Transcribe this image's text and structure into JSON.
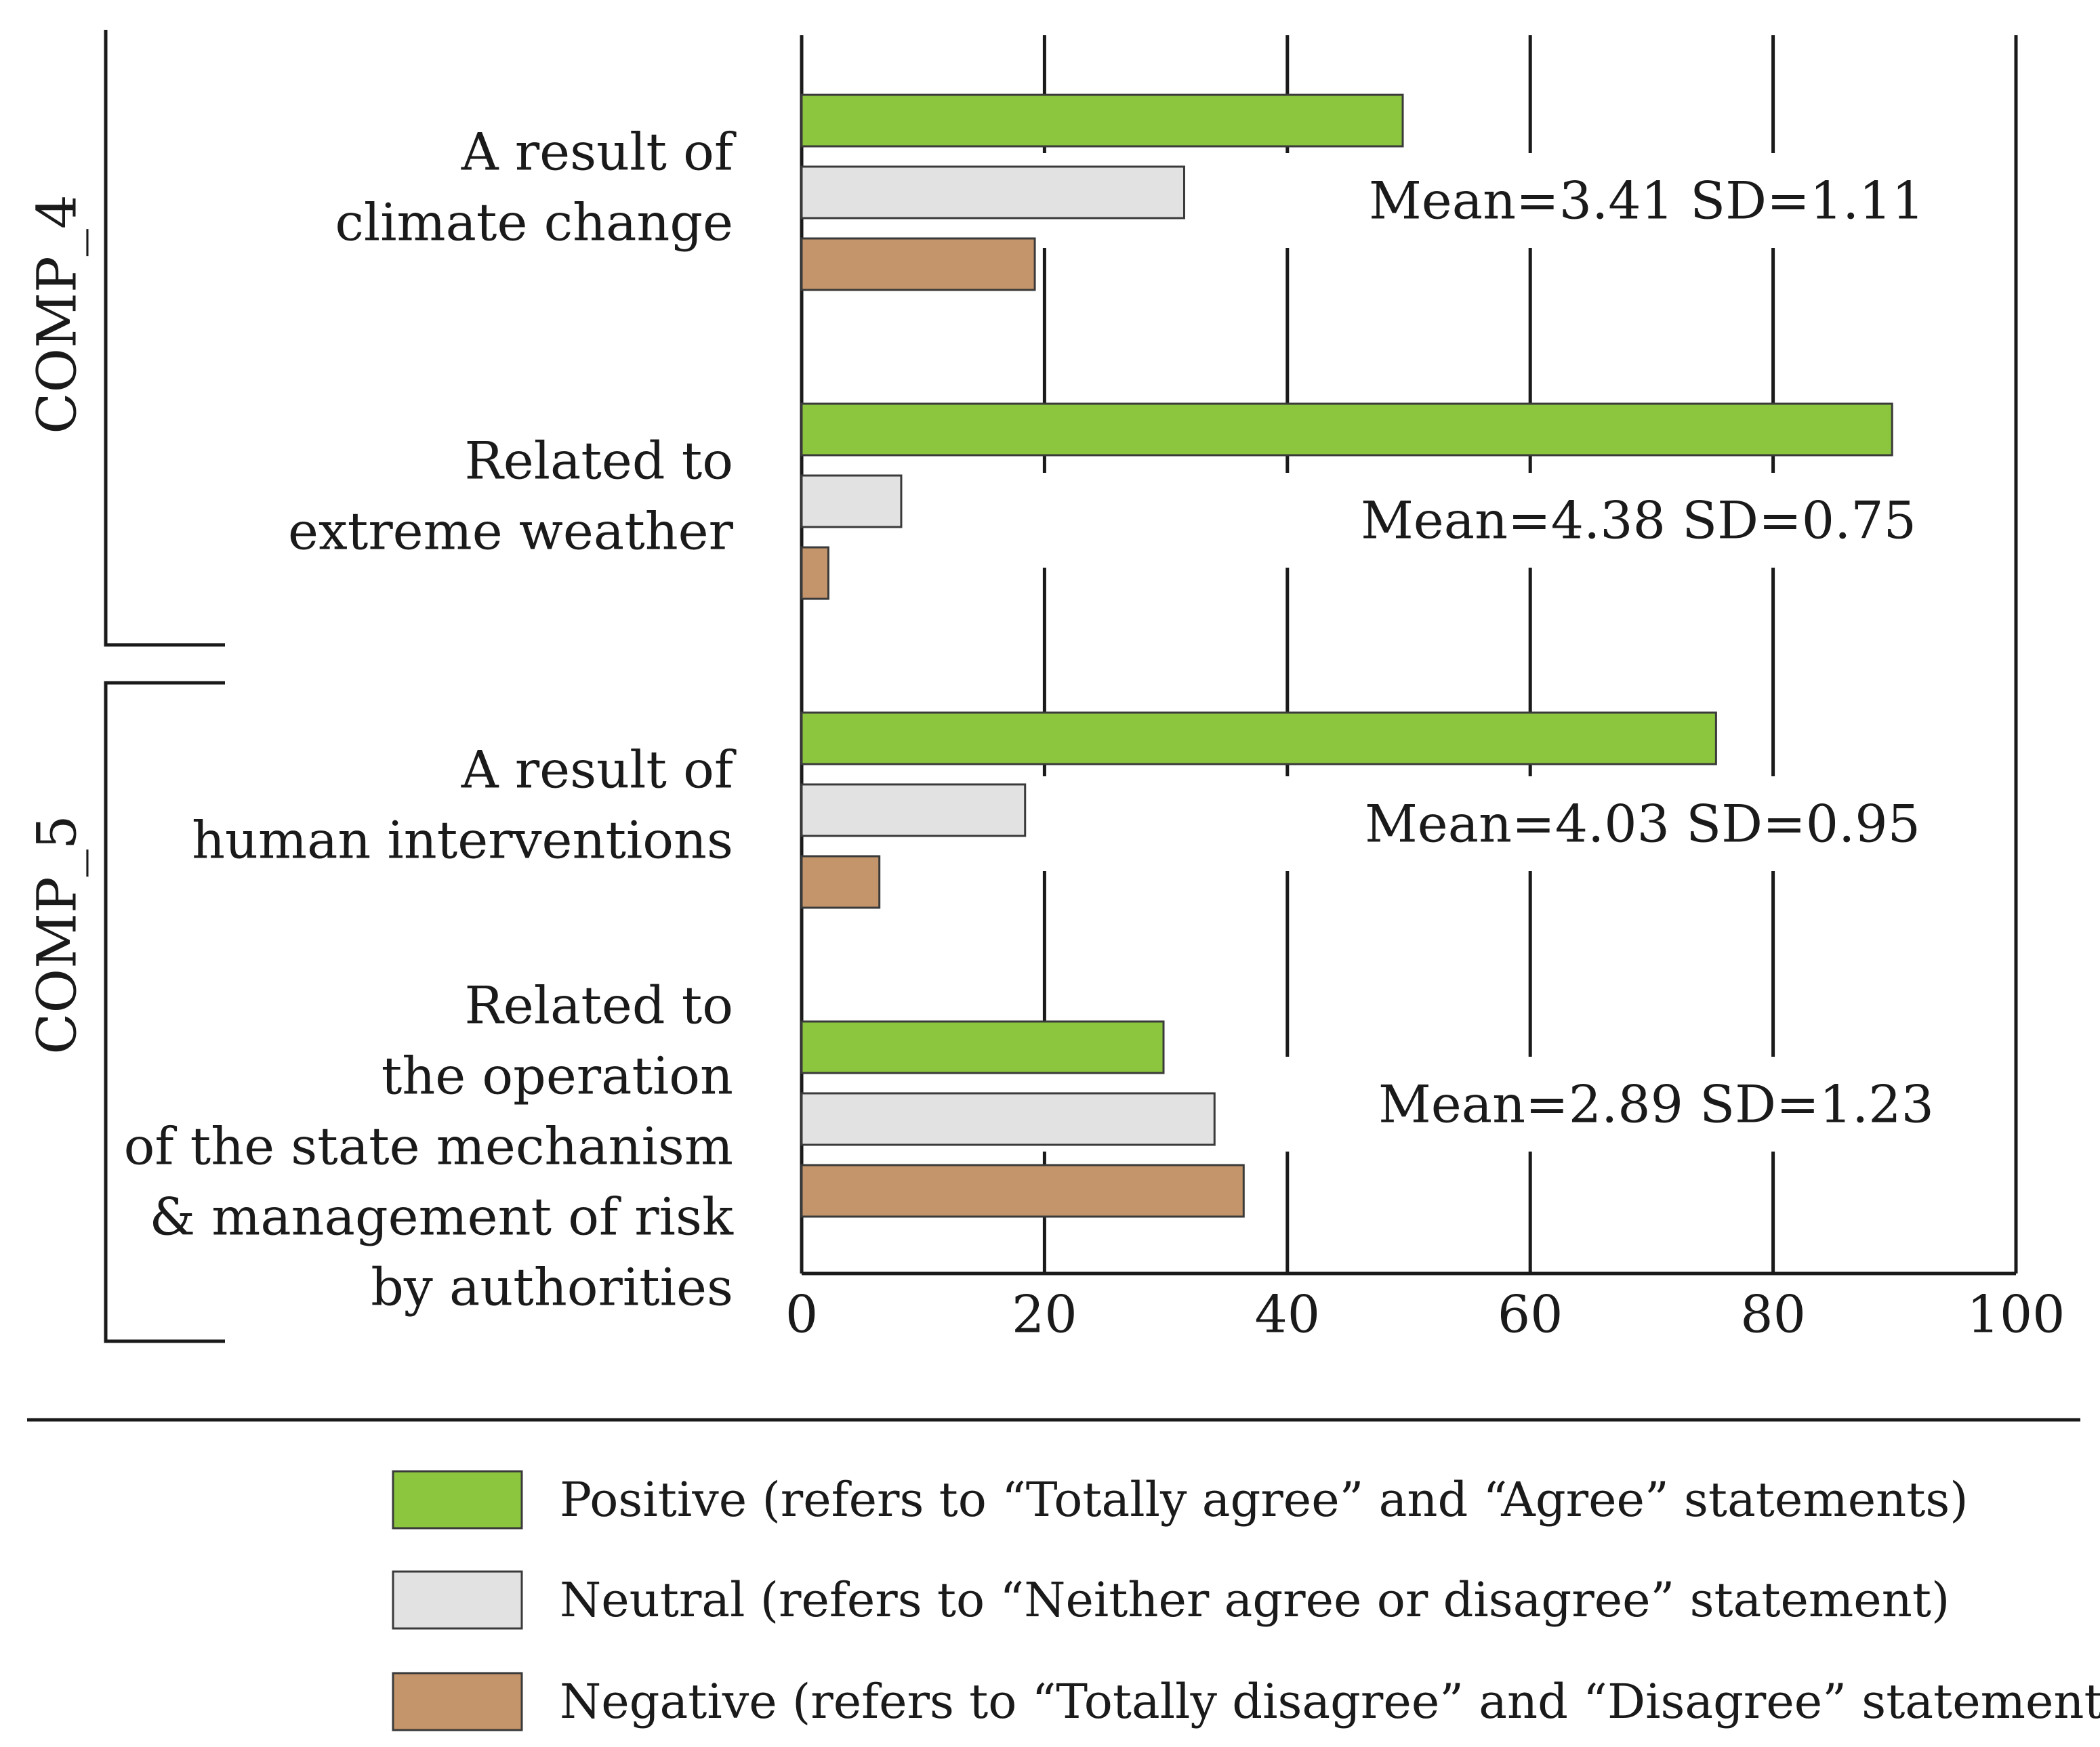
{
  "chart_data": {
    "type": "bar",
    "orientation": "horizontal",
    "xlim": [
      0,
      100
    ],
    "xticks": [
      0,
      20,
      40,
      60,
      80,
      100
    ],
    "grid": true,
    "legend_position": "bottom",
    "colors": {
      "Positive": "#8cc63f",
      "Neutral": "#e2e2e2",
      "Negative": "#c4956a"
    },
    "groups": [
      {
        "name": "COMP_4",
        "categories": [
          0,
          1
        ]
      },
      {
        "name": "COMP_5",
        "categories": [
          2,
          3
        ]
      }
    ],
    "categories": [
      {
        "label_lines": [
          "A result of",
          "climate change"
        ],
        "stats": "Mean=3.41  SD=1.11",
        "values": {
          "Positive": 49.5,
          "Neutral": 31.5,
          "Negative": 19.2
        }
      },
      {
        "label_lines": [
          "Related to",
          "extreme weather"
        ],
        "stats": "Mean=4.38  SD=0.75",
        "values": {
          "Positive": 89.8,
          "Neutral": 8.2,
          "Negative": 2.2
        }
      },
      {
        "label_lines": [
          "A result of",
          "human interventions"
        ],
        "stats": "Mean=4.03  SD=0.95",
        "values": {
          "Positive": 75.3,
          "Neutral": 18.4,
          "Negative": 6.4
        }
      },
      {
        "label_lines": [
          "Related to",
          "the operation",
          "of the state mechanism",
          "& management of risk",
          "by authorities"
        ],
        "stats": "Mean=2.89  SD=1.23",
        "values": {
          "Positive": 29.8,
          "Neutral": 34.0,
          "Negative": 36.4
        }
      }
    ],
    "series": [
      {
        "name": "Positive",
        "legend": "Positive (refers to “Totally agree” and “Agree” statements)"
      },
      {
        "name": "Neutral",
        "legend": "Neutral (refers to “Neither agree or disagree” statement)"
      },
      {
        "name": "Negative",
        "legend": "Negative (refers to “Totally disagree” and “Disagree” statements)"
      }
    ]
  }
}
